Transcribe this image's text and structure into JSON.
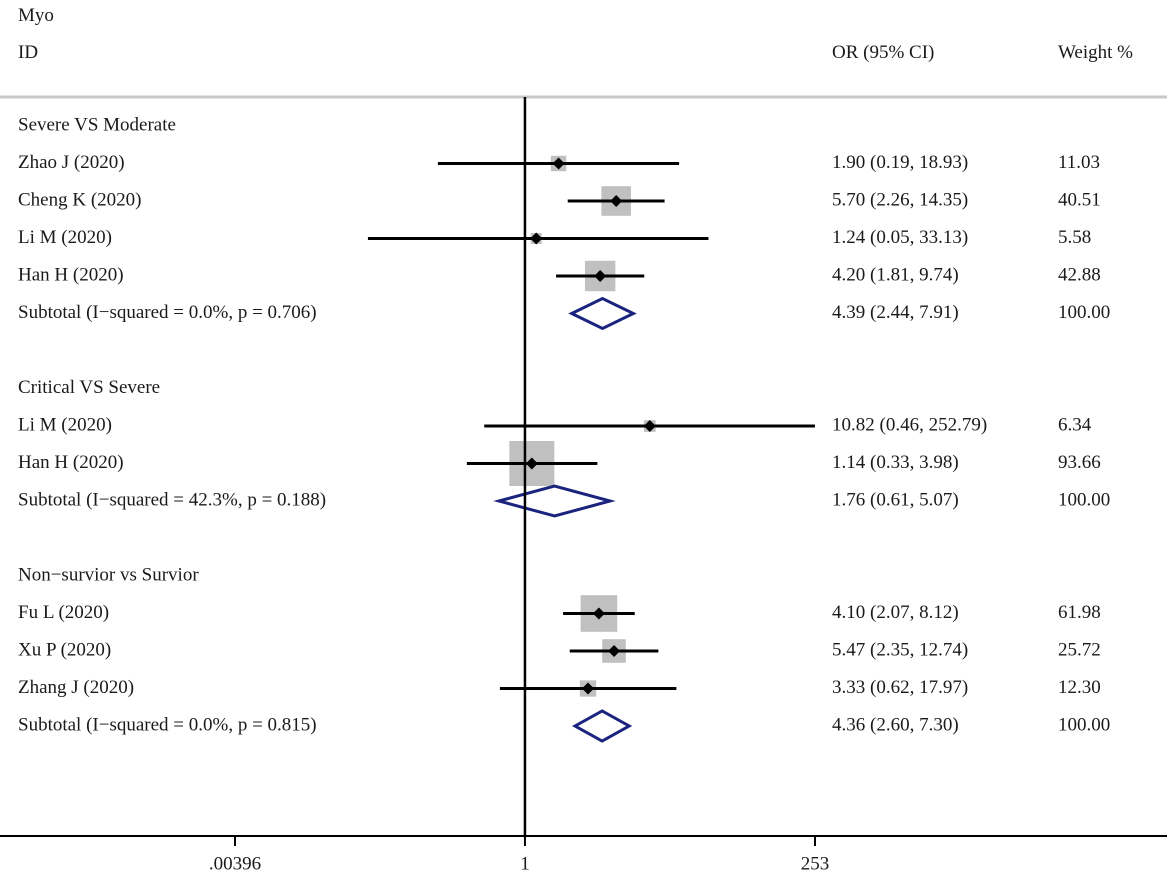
{
  "chart_data": {
    "type": "forest",
    "title": "Myo",
    "header": {
      "id": "ID",
      "or": "OR (95% CI)",
      "weight": "Weight %"
    },
    "x_scale": "log",
    "xlim": [
      0.00396,
      253
    ],
    "reference_value": 1,
    "x_ticks": [
      {
        "value": 0.00396,
        "label": ".00396"
      },
      {
        "value": 1,
        "label": "1"
      },
      {
        "value": 253,
        "label": "253"
      }
    ],
    "rows": [
      {
        "kind": "group",
        "label": "Severe VS Moderate"
      },
      {
        "kind": "study",
        "label": "Zhao J  (2020)",
        "or": 1.9,
        "lo": 0.19,
        "hi": 18.93,
        "weight": 11.03,
        "or_text": "1.90 (0.19, 18.93)",
        "weight_text": "11.03"
      },
      {
        "kind": "study",
        "label": "Cheng K  (2020)",
        "or": 5.7,
        "lo": 2.26,
        "hi": 14.35,
        "weight": 40.51,
        "or_text": "5.70 (2.26, 14.35)",
        "weight_text": "40.51"
      },
      {
        "kind": "study",
        "label": "Li M  (2020)",
        "or": 1.24,
        "lo": 0.05,
        "hi": 33.13,
        "weight": 5.58,
        "or_text": "1.24 (0.05, 33.13)",
        "weight_text": "5.58"
      },
      {
        "kind": "study",
        "label": "Han H  (2020)",
        "or": 4.2,
        "lo": 1.81,
        "hi": 9.74,
        "weight": 42.88,
        "or_text": "4.20 (1.81, 9.74)",
        "weight_text": "42.88"
      },
      {
        "kind": "subtotal",
        "label": "Subtotal  (I−squared = 0.0%, p = 0.706)",
        "or": 4.39,
        "lo": 2.44,
        "hi": 7.91,
        "or_text": "4.39 (2.44, 7.91)",
        "weight_text": "100.00"
      },
      {
        "kind": "spacer"
      },
      {
        "kind": "group",
        "label": "Critical VS Severe"
      },
      {
        "kind": "study",
        "label": "Li M  (2020)",
        "or": 10.82,
        "lo": 0.46,
        "hi": 252.79,
        "weight": 6.34,
        "or_text": "10.82 (0.46, 252.79)",
        "weight_text": "6.34"
      },
      {
        "kind": "study",
        "label": "Han H   (2020)",
        "or": 1.14,
        "lo": 0.33,
        "hi": 3.98,
        "weight": 93.66,
        "or_text": "1.14 (0.33, 3.98)",
        "weight_text": "93.66"
      },
      {
        "kind": "subtotal",
        "label": "Subtotal  (I−squared = 42.3%, p = 0.188)",
        "or": 1.76,
        "lo": 0.61,
        "hi": 5.07,
        "or_text": "1.76 (0.61, 5.07)",
        "weight_text": "100.00"
      },
      {
        "kind": "spacer"
      },
      {
        "kind": "group",
        "label": "Non−survior vs Survior"
      },
      {
        "kind": "study",
        "label": "Fu L  (2020)",
        "or": 4.1,
        "lo": 2.07,
        "hi": 8.12,
        "weight": 61.98,
        "or_text": "4.10 (2.07, 8.12)",
        "weight_text": "61.98"
      },
      {
        "kind": "study",
        "label": "Xu P  (2020)",
        "or": 5.47,
        "lo": 2.35,
        "hi": 12.74,
        "weight": 25.72,
        "or_text": "5.47 (2.35, 12.74)",
        "weight_text": "25.72"
      },
      {
        "kind": "study",
        "label": "Zhang J  (2020)",
        "or": 3.33,
        "lo": 0.62,
        "hi": 17.97,
        "weight": 12.3,
        "or_text": "3.33 (0.62, 17.97)",
        "weight_text": "12.30"
      },
      {
        "kind": "subtotal",
        "label": "Subtotal  (I−squared = 0.0%, p = 0.815)",
        "or": 4.36,
        "lo": 2.6,
        "hi": 7.3,
        "or_text": "4.36 (2.60, 7.30)",
        "weight_text": "100.00"
      }
    ],
    "colors": {
      "marker": "#000000",
      "weight_box": "#c0c0c0",
      "diamond": "#1a237e",
      "separator": "#c8c8c8",
      "text": "#1a1a1a"
    }
  }
}
